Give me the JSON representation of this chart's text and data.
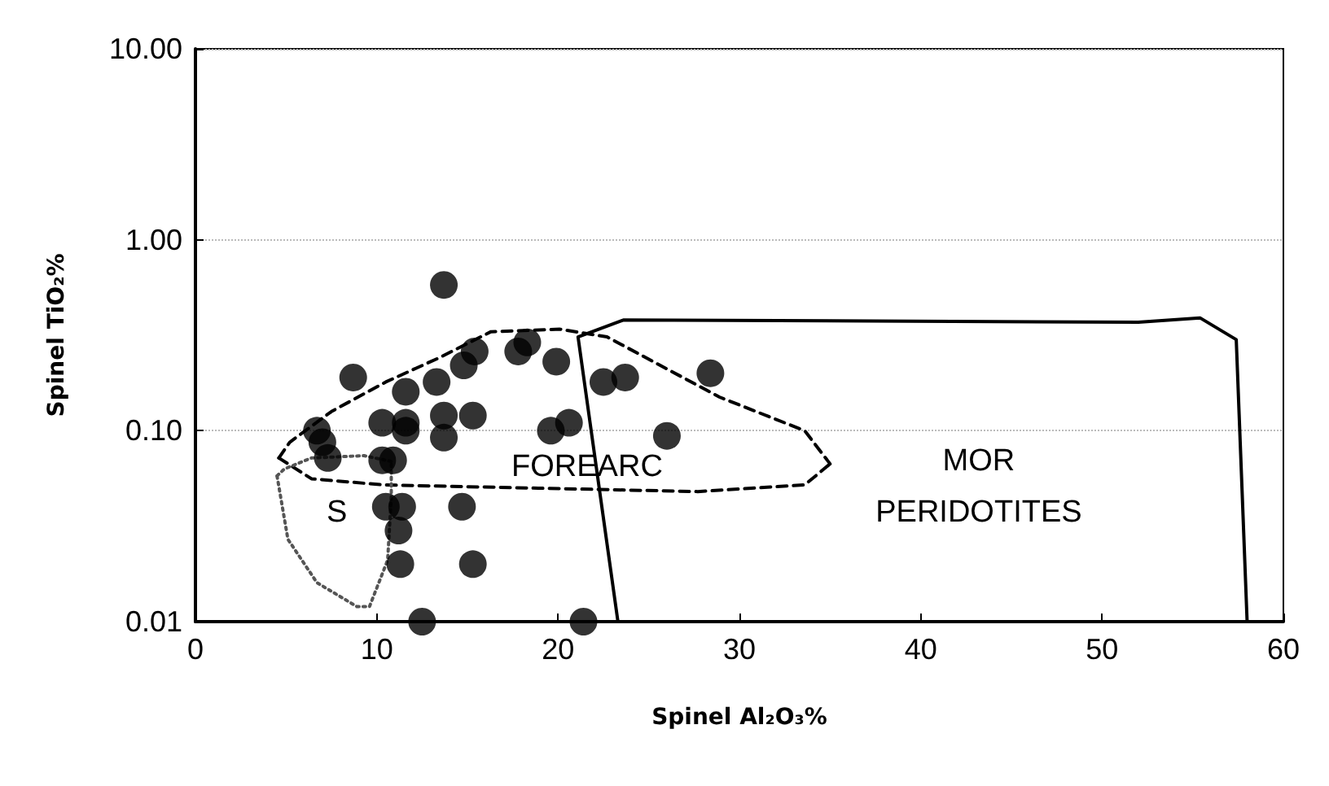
{
  "chart_data": {
    "type": "scatter",
    "xlabel": "Spinel Al₂O₃%",
    "ylabel": "Spinel TiO₂%",
    "log": "y",
    "grid": "y",
    "xlim": [
      0,
      60
    ],
    "xticks": [
      0,
      10,
      20,
      30,
      40,
      50,
      60
    ],
    "ylim": [
      0.01,
      10
    ],
    "yticks": [
      {
        "value": 0.01,
        "label": "0.01"
      },
      {
        "value": 0.1,
        "label": "0.10"
      },
      {
        "value": 1,
        "label": "1.00"
      },
      {
        "value": 10,
        "label": "10.00"
      }
    ],
    "series": [
      {
        "type": "scatter",
        "color": "#000000",
        "marker": "circle",
        "x": [
          13.7,
          8.7,
          11.6,
          13.3,
          14.8,
          15.4,
          17.8,
          18.3,
          19.9,
          6.7,
          7.0,
          7.3,
          10.3,
          11.6,
          11.6,
          13.7,
          15.3,
          13.7,
          19.6,
          20.6,
          10.3,
          10.9,
          10.5,
          11.4,
          11.2,
          14.7,
          11.3,
          15.3,
          12.5,
          21.4,
          22.5,
          23.7,
          28.4,
          26.0
        ],
        "values": [
          0.58,
          0.19,
          0.16,
          0.18,
          0.22,
          0.26,
          0.26,
          0.29,
          0.23,
          0.1,
          0.087,
          0.072,
          0.11,
          0.11,
          0.1,
          0.12,
          0.12,
          0.092,
          0.1,
          0.11,
          0.07,
          0.07,
          0.04,
          0.04,
          0.03,
          0.04,
          0.02,
          0.02,
          0.01,
          0.01,
          0.18,
          0.19,
          0.2,
          0.094
        ]
      },
      {
        "type": "line",
        "color": "#000000",
        "marker": "none",
        "line_style": "solid",
        "x": [
          23.3,
          21.1,
          23.6,
          52,
          55.4,
          57.4,
          58.0
        ],
        "values": [
          0.01,
          0.31,
          0.38,
          0.37,
          0.39,
          0.3,
          0.01
        ]
      },
      {
        "type": "line",
        "color": "#000000",
        "marker": "none",
        "line_style": "dashed",
        "x": [
          4.6,
          6.4,
          10.4,
          18.9,
          27.7,
          33.6,
          35.0
        ],
        "values": [
          0.072,
          0.056,
          0.052,
          0.05,
          0.048,
          0.052,
          0.067
        ]
      },
      {
        "type": "line",
        "color": "#000000",
        "marker": "none",
        "line_style": "dashed",
        "x": [
          4.6,
          5.2,
          7.5,
          10.5,
          13.4,
          16.3,
          20.1,
          22.7,
          28.9,
          33.6,
          35.0
        ],
        "values": [
          0.072,
          0.087,
          0.126,
          0.18,
          0.24,
          0.33,
          0.34,
          0.31,
          0.15,
          0.1,
          0.067
        ]
      },
      {
        "type": "line",
        "color": "#555555",
        "marker": "none",
        "line_style": "dotted",
        "x": [
          4.5,
          4.9,
          6.4,
          9.3,
          10.8
        ],
        "values": [
          0.058,
          0.063,
          0.072,
          0.074,
          0.069
        ]
      },
      {
        "type": "line",
        "color": "#555555",
        "marker": "none",
        "line_style": "dotted",
        "x": [
          4.5,
          5.1,
          6.7,
          8.9,
          9.6,
          10.6,
          10.8,
          10.8
        ],
        "values": [
          0.058,
          0.027,
          0.016,
          0.012,
          0.012,
          0.021,
          0.045,
          0.069
        ]
      }
    ],
    "annotations": [
      "FOREARC",
      "MOR",
      "PERIDOTITES",
      "S"
    ]
  }
}
